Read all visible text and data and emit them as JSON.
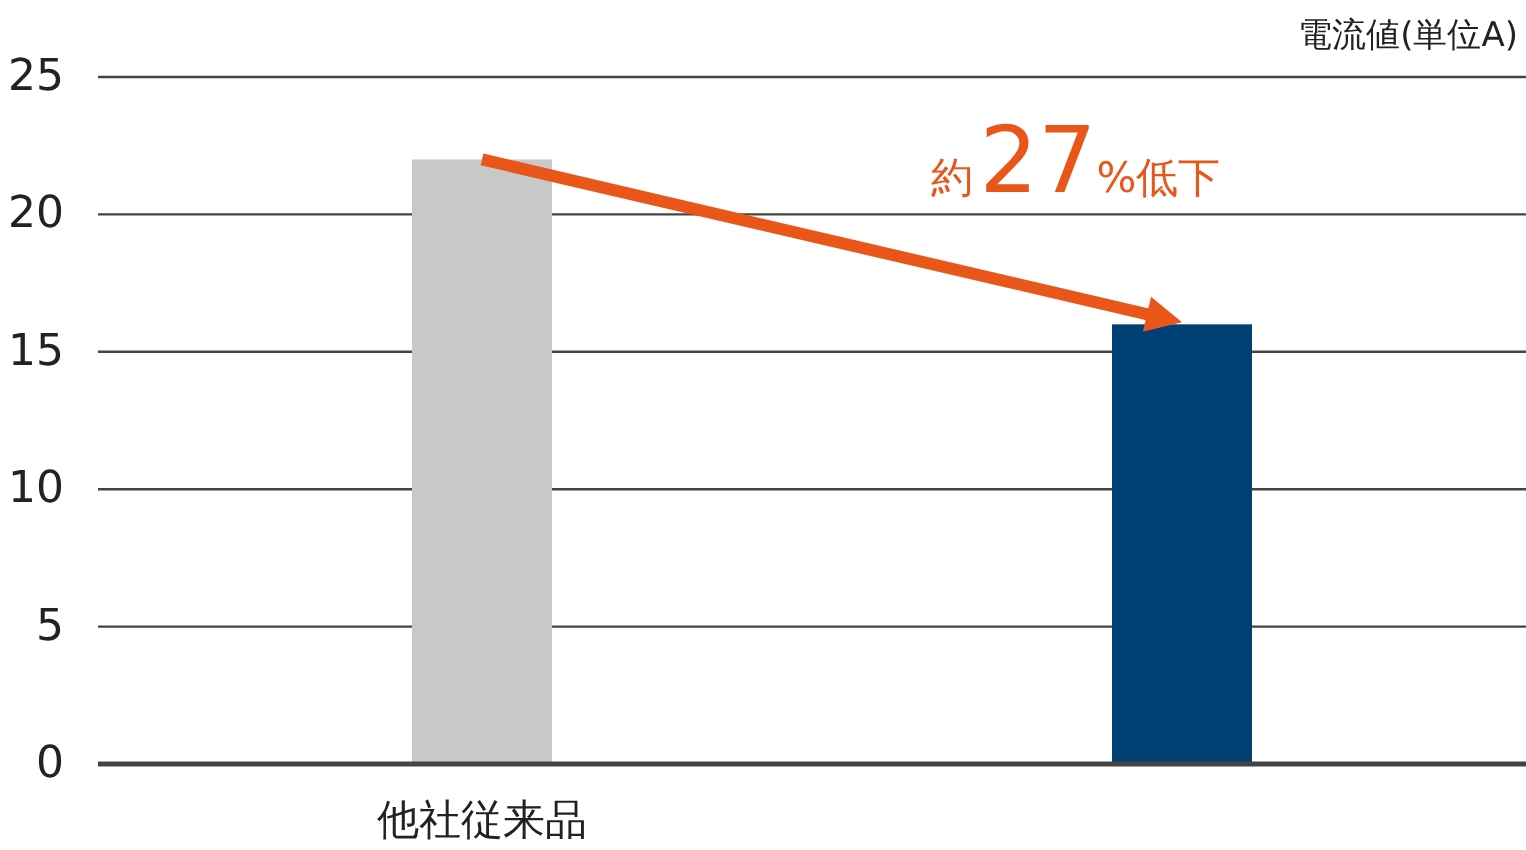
{
  "chart_data": {
    "type": "bar",
    "ylabel": "電流値(単位A)",
    "categories": [
      "他社従来品",
      null
    ],
    "values": [
      22,
      16
    ],
    "colors": [
      "#c8c8c9",
      "#004175"
    ],
    "ylim": [
      0,
      25
    ],
    "yticks": [
      0,
      5,
      10,
      15,
      20,
      25
    ],
    "grid": "y",
    "annotations": [
      "約27%低下"
    ]
  }
}
